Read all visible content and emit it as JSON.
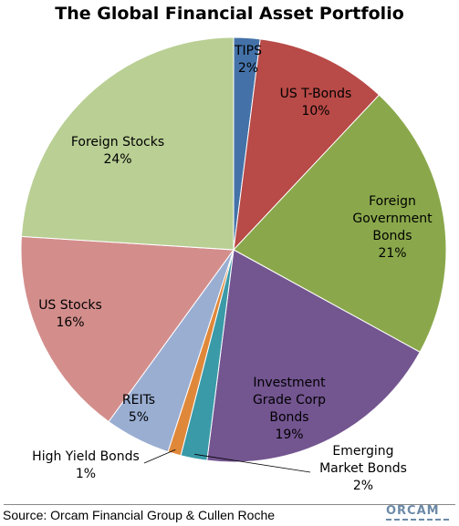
{
  "chart_data": {
    "type": "pie",
    "title": "The Global Financial Asset Portfolio",
    "start_angle_deg": 0,
    "direction": "clockwise",
    "slices": [
      {
        "label": "TIPS",
        "value": 2,
        "value_label": "2%",
        "color": "#4472a8"
      },
      {
        "label": "US T-Bonds",
        "value": 10,
        "value_label": "10%",
        "color": "#b84a47"
      },
      {
        "label": "Foreign Government Bonds",
        "value": 21,
        "value_label": "21%",
        "color": "#8aa84b"
      },
      {
        "label": "Investment Grade Corp Bonds",
        "value": 19,
        "value_label": "19%",
        "color": "#735590"
      },
      {
        "label": "Emerging Market Bonds",
        "value": 2,
        "value_label": "2%",
        "color": "#3a9aa8"
      },
      {
        "label": "High Yield Bonds",
        "value": 1,
        "value_label": "1%",
        "color": "#e0883a"
      },
      {
        "label": "REITs",
        "value": 5,
        "value_label": "5%",
        "color": "#9aaed2"
      },
      {
        "label": "US Stocks",
        "value": 16,
        "value_label": "16%",
        "color": "#d38e8c"
      },
      {
        "label": "Foreign Stocks",
        "value": 24,
        "value_label": "24%",
        "color": "#b9cf94"
      }
    ]
  },
  "footer": {
    "source": "Source: Orcam Financial Group & Cullen Roche",
    "brand": "ORCAM"
  }
}
